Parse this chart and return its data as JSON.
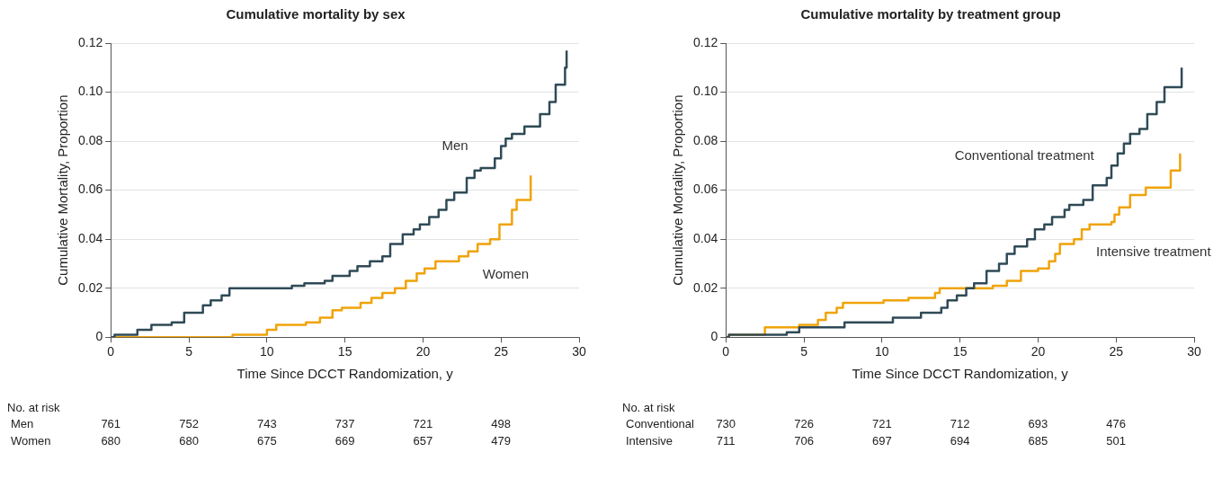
{
  "chart_data": [
    {
      "type": "step",
      "title": "Cumulative mortality by sex",
      "xlabel": "Time Since DCCT Randomization, y",
      "ylabel": "Cumulative Mortality, Proportion",
      "xlim": [
        0,
        30
      ],
      "xticks": [
        0,
        5,
        10,
        15,
        20,
        25,
        30
      ],
      "ylim": [
        0,
        0.12
      ],
      "yticks": [
        0,
        0.02,
        0.04,
        0.06,
        0.08,
        {
          "value": 0.1,
          "label": "0.10"
        },
        0.12
      ],
      "grid": "y",
      "legend": false,
      "marker": "none",
      "line_style": "solid",
      "series": [
        {
          "name": "Men",
          "color": "#2f4a56",
          "x": [
            0,
            0.24,
            1.7,
            2.6,
            3.9,
            4.7,
            5.9,
            6.4,
            7.1,
            7.6,
            11.6,
            12.4,
            13.7,
            14.2,
            15.3,
            15.8,
            16.6,
            17.4,
            17.9,
            18.7,
            19.4,
            19.8,
            20.4,
            21.0,
            21.5,
            22.0,
            22.8,
            23.3,
            23.7,
            24.6,
            25.0,
            25.3,
            25.7,
            26.5,
            27.5,
            28.1,
            28.5,
            29.1,
            29.2
          ],
          "values": [
            0,
            0.001,
            0.003,
            0.005,
            0.006,
            0.01,
            0.013,
            0.015,
            0.017,
            0.02,
            0.021,
            0.022,
            0.023,
            0.025,
            0.027,
            0.029,
            0.031,
            0.033,
            0.038,
            0.042,
            0.044,
            0.046,
            0.049,
            0.052,
            0.056,
            0.059,
            0.065,
            0.068,
            0.069,
            0.073,
            0.078,
            0.081,
            0.083,
            0.086,
            0.091,
            0.096,
            0.103,
            0.11,
            0.117
          ]
        },
        {
          "name": "Women",
          "color": "#f0a30a",
          "x": [
            0,
            7.8,
            10.0,
            10.6,
            12.5,
            13.4,
            14.2,
            14.8,
            16.0,
            16.7,
            17.4,
            18.2,
            18.9,
            19.6,
            20.1,
            20.8,
            22.3,
            22.9,
            23.5,
            24.3,
            24.9,
            25.7,
            26.0,
            26.9
          ],
          "values": [
            0,
            0.001,
            0.003,
            0.005,
            0.006,
            0.008,
            0.011,
            0.012,
            0.014,
            0.016,
            0.018,
            0.02,
            0.023,
            0.026,
            0.028,
            0.031,
            0.033,
            0.035,
            0.038,
            0.04,
            0.046,
            0.052,
            0.056,
            0.066
          ]
        }
      ],
      "annotations": [
        "No. at risk",
        "Men",
        "761",
        "752",
        "743",
        "737",
        "721",
        "498",
        "Women",
        "680",
        "680",
        "675",
        "669",
        "657",
        "479"
      ]
    },
    {
      "type": "step",
      "title": "Cumulative mortality by treatment group",
      "xlabel": "Time Since DCCT Randomization, y",
      "ylabel": "Cumulative Mortality, Proportion",
      "xlim": [
        0,
        30
      ],
      "xticks": [
        0,
        5,
        10,
        15,
        20,
        25,
        30
      ],
      "ylim": [
        0,
        0.12
      ],
      "yticks": [
        0,
        0.02,
        0.04,
        0.06,
        0.08,
        {
          "value": 0.1,
          "label": "0.10"
        },
        0.12
      ],
      "grid": "y",
      "legend": false,
      "marker": "none",
      "line_style": "solid",
      "series": [
        {
          "name": "Conventional treatment",
          "color": "#2f4a56",
          "x": [
            0,
            0.2,
            3.9,
            4.7,
            7.6,
            10.7,
            12.5,
            13.8,
            14.2,
            14.8,
            15.4,
            15.9,
            16.7,
            17.5,
            18.0,
            18.5,
            19.3,
            19.8,
            20.4,
            20.9,
            21.7,
            22.0,
            22.9,
            23.5,
            24.4,
            24.7,
            25.1,
            25.5,
            25.9,
            26.5,
            27.0,
            27.6,
            28.1,
            29.2
          ],
          "values": [
            0,
            0.001,
            0.002,
            0.004,
            0.006,
            0.008,
            0.01,
            0.012,
            0.015,
            0.017,
            0.02,
            0.022,
            0.027,
            0.03,
            0.034,
            0.037,
            0.04,
            0.044,
            0.046,
            0.049,
            0.052,
            0.054,
            0.056,
            0.062,
            0.065,
            0.07,
            0.075,
            0.079,
            0.083,
            0.085,
            0.091,
            0.096,
            0.102,
            0.11
          ]
        },
        {
          "name": "Intensive treatment",
          "color": "#f0a30a",
          "x": [
            0,
            0.2,
            2.5,
            4.7,
            5.9,
            6.4,
            7.1,
            7.5,
            10.1,
            11.7,
            13.4,
            13.7,
            17.1,
            18.0,
            18.9,
            20.0,
            20.7,
            21.1,
            21.4,
            22.3,
            22.8,
            23.3,
            24.7,
            24.9,
            25.2,
            25.9,
            26.9,
            28.5,
            29.1
          ],
          "values": [
            0,
            0.001,
            0.004,
            0.005,
            0.007,
            0.01,
            0.012,
            0.014,
            0.015,
            0.016,
            0.018,
            0.02,
            0.021,
            0.023,
            0.027,
            0.028,
            0.031,
            0.034,
            0.038,
            0.04,
            0.044,
            0.046,
            0.047,
            0.05,
            0.053,
            0.058,
            0.061,
            0.068,
            0.075
          ]
        }
      ],
      "annotations": [
        "No. at risk",
        "Conventional",
        "730",
        "726",
        "721",
        "712",
        "693",
        "476",
        "Intensive",
        "711",
        "706",
        "697",
        "694",
        "685",
        "501"
      ]
    }
  ]
}
